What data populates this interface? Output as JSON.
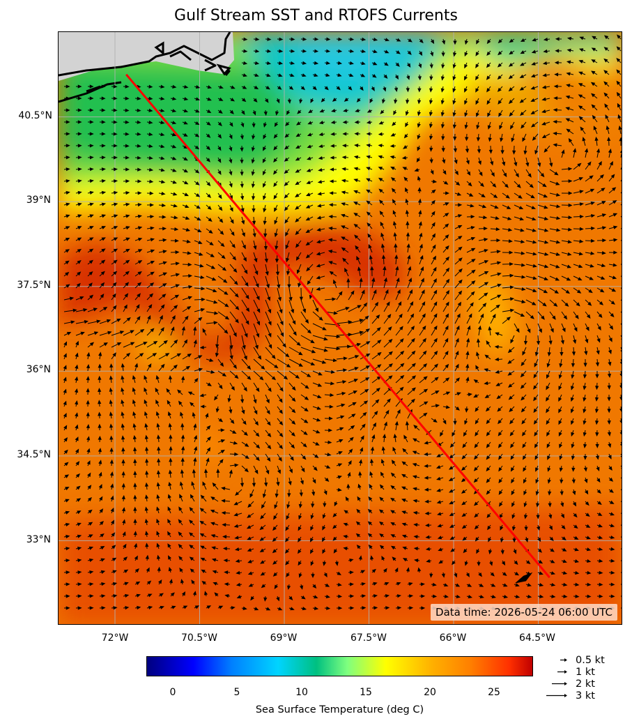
{
  "title": "Gulf Stream SST and RTOFS Currents",
  "data_time": "Data time: 2026-05-24 06:00 UTC",
  "lat_labels": [
    "40.5°N",
    "39°N",
    "37.5°N",
    "36°N",
    "34.5°N",
    "33°N"
  ],
  "lon_labels": [
    "72°W",
    "70.5°W",
    "69°W",
    "67.5°W",
    "66°W",
    "64.5°W"
  ],
  "colorbar": {
    "label": "Sea Surface Temperature (deg C)",
    "ticks": [
      "0",
      "5",
      "10",
      "15",
      "20",
      "25"
    ],
    "range": [
      -2,
      28
    ],
    "colormap": "jet"
  },
  "current_legend": [
    {
      "label": "0.5 kt",
      "speed_kt": 0.5
    },
    {
      "label": "1 kt",
      "speed_kt": 1
    },
    {
      "label": "2 kt",
      "speed_kt": 2
    },
    {
      "label": "3 kt",
      "speed_kt": 3
    }
  ],
  "route": {
    "color": "#ff0000",
    "start": {
      "lon": -71.8,
      "lat": 41.25
    },
    "end": {
      "lon": -64.3,
      "lat": 32.35
    }
  },
  "map_extent": {
    "lon": [
      -73.0,
      -63.0
    ],
    "lat": [
      31.5,
      42.0
    ]
  },
  "colors": {
    "land": "#d3d3d3",
    "coastline": "#000000",
    "gridline": "#b0b0b0"
  }
}
